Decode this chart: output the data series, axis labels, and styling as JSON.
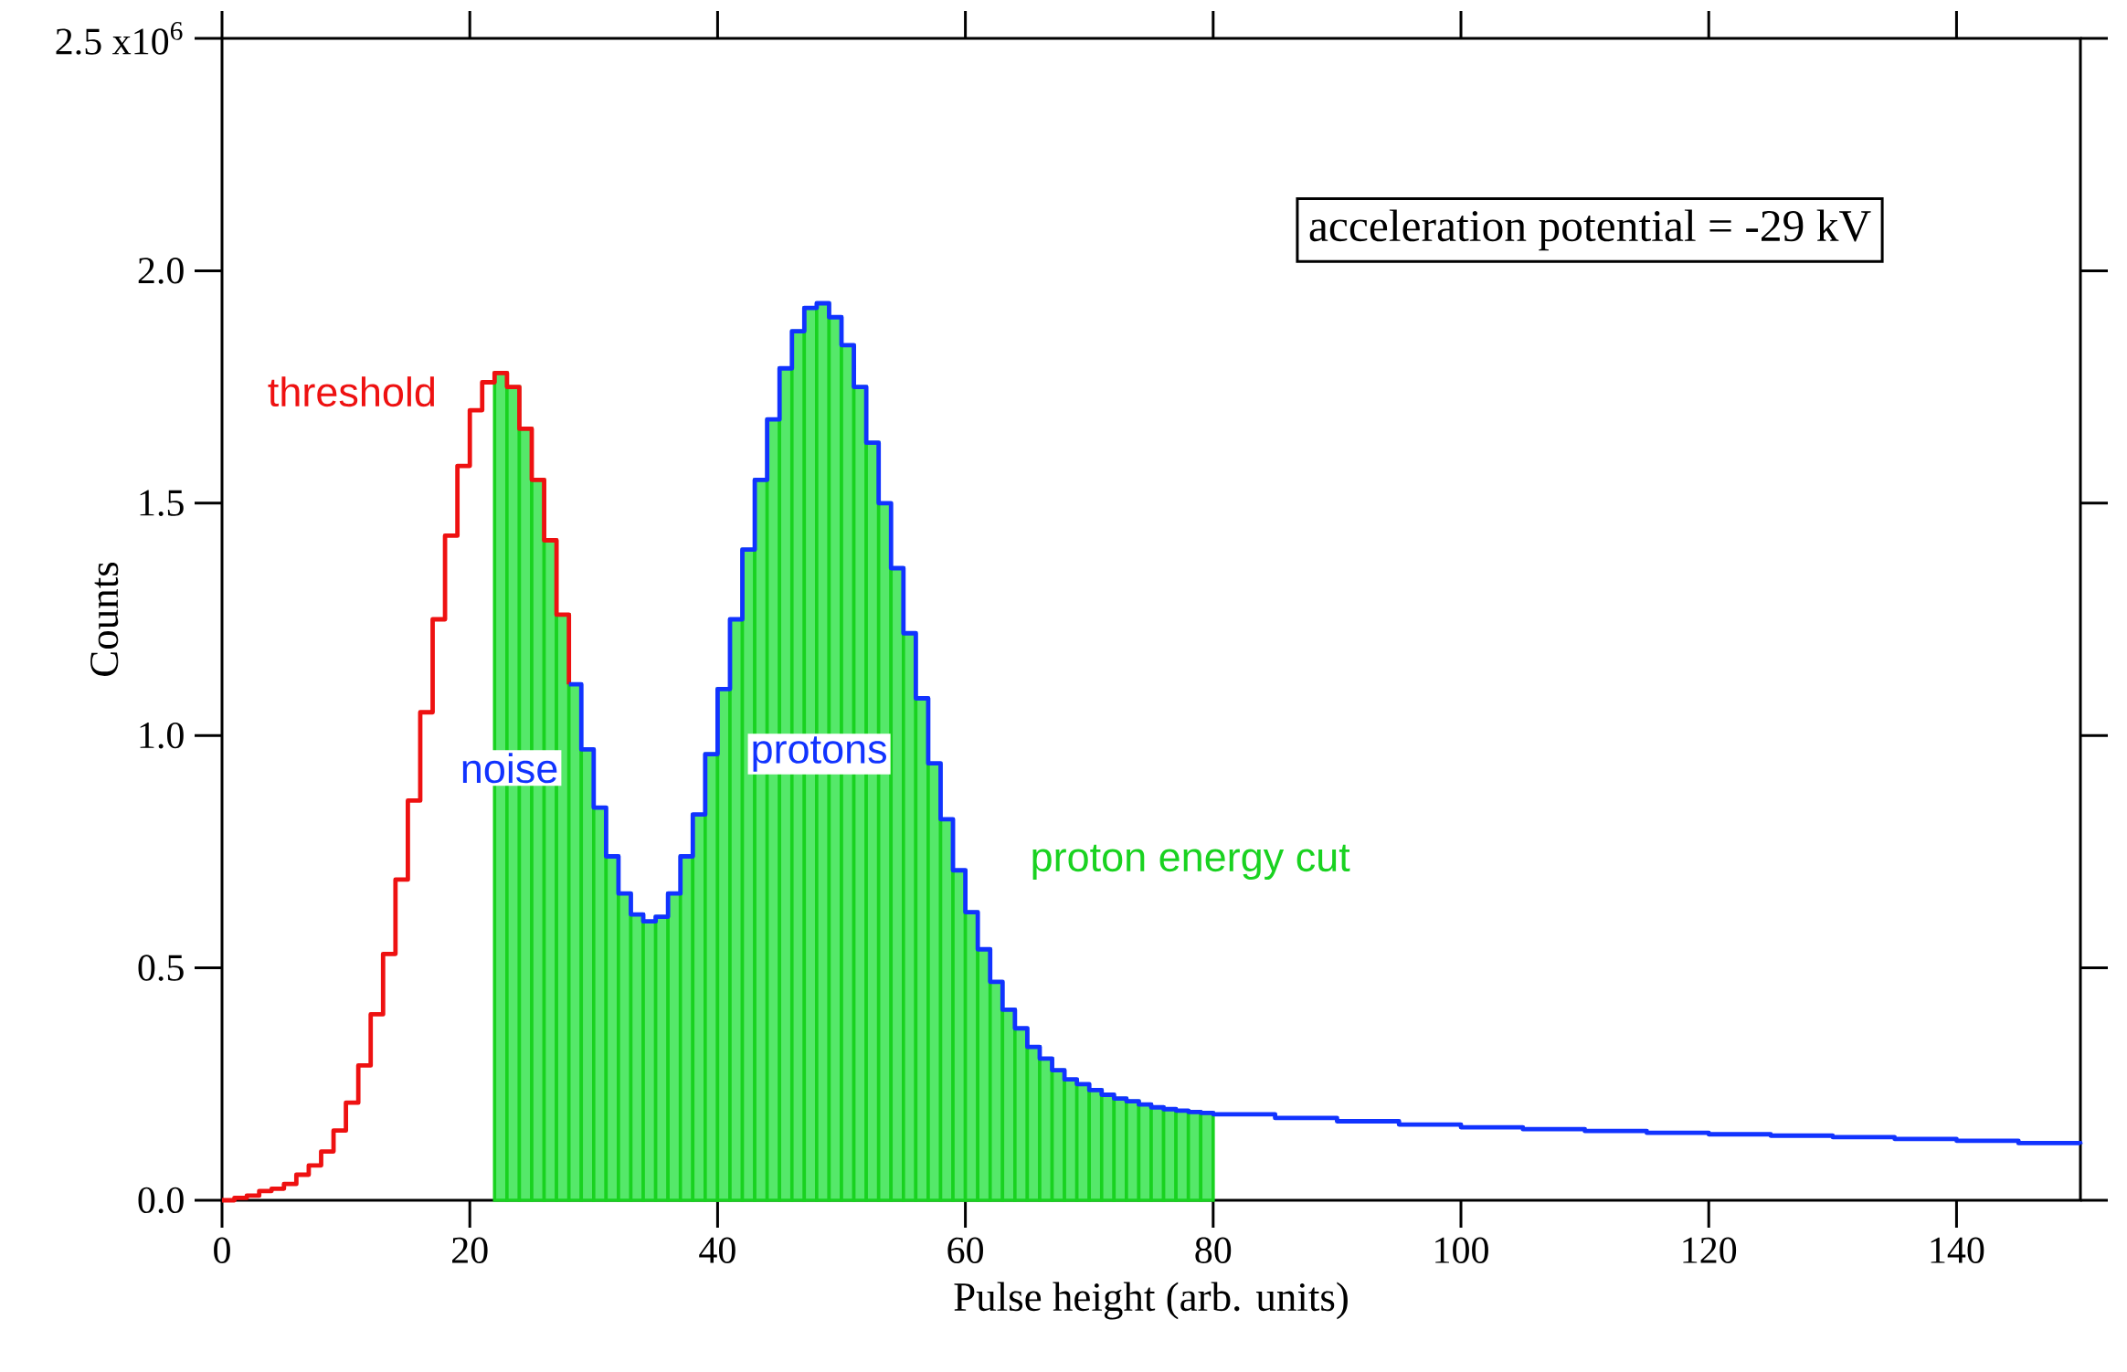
{
  "chart_data": {
    "type": "step",
    "xlabel": "Pulse height (arb. units)",
    "ylabel": "Counts",
    "xlim": [
      0,
      150
    ],
    "xticks": [
      0,
      20,
      40,
      60,
      80,
      100,
      120,
      140
    ],
    "ylim": [
      0,
      2.5
    ],
    "yticks": [
      {
        "value": 0,
        "label": "0.0"
      },
      {
        "value": 0.5,
        "label": "0.5"
      },
      {
        "value": 1.0,
        "label": "1.0"
      },
      {
        "value": 1.5,
        "label": "1.5"
      },
      {
        "value": 2.0,
        "label": "2.0"
      },
      {
        "value": 2.5,
        "label": null
      }
    ],
    "series": [
      {
        "type": "histogram",
        "color": "#55e86a",
        "bins": [
          22,
          23,
          24,
          25,
          26,
          27,
          28,
          29,
          30,
          31,
          32,
          33,
          34,
          35,
          36,
          37,
          38,
          39,
          40,
          41,
          42,
          43,
          44,
          45,
          46,
          47,
          48,
          49,
          50,
          51,
          52,
          53,
          54,
          55,
          56,
          57,
          58,
          59,
          60,
          61,
          62,
          63,
          64,
          65,
          66,
          67,
          68,
          69,
          70,
          71,
          72,
          73,
          74,
          75,
          76,
          77,
          78,
          79,
          80
        ],
        "values": [
          1.78,
          1.75,
          1.66,
          1.55,
          1.42,
          1.26,
          1.11,
          0.97,
          0.845,
          0.74,
          0.66,
          0.615,
          0.6,
          0.61,
          0.66,
          0.74,
          0.83,
          0.96,
          1.1,
          1.25,
          1.4,
          1.55,
          1.68,
          1.79,
          1.87,
          1.92,
          1.93,
          1.9,
          1.84,
          1.75,
          1.63,
          1.5,
          1.36,
          1.22,
          1.08,
          0.94,
          0.82,
          0.71,
          0.62,
          0.54,
          0.47,
          0.41,
          0.37,
          0.33,
          0.305,
          0.28,
          0.26,
          0.25,
          0.237,
          0.227,
          0.219,
          0.213,
          0.206,
          0.2,
          0.196,
          0.193,
          0.19,
          0.188
        ]
      },
      {
        "color": "#ee1111",
        "x": [
          0,
          1,
          2,
          3,
          4,
          5,
          6,
          7,
          8,
          9,
          10,
          11,
          12,
          13,
          14,
          15,
          16,
          17,
          18,
          19,
          20,
          21,
          22,
          23,
          24,
          25,
          26,
          27,
          28
        ],
        "values": [
          0.0,
          0.005,
          0.01,
          0.02,
          0.025,
          0.035,
          0.055,
          0.075,
          0.105,
          0.15,
          0.21,
          0.29,
          0.4,
          0.53,
          0.69,
          0.86,
          1.05,
          1.25,
          1.43,
          1.58,
          1.7,
          1.76,
          1.78,
          1.75,
          1.66,
          1.55,
          1.42,
          1.26,
          1.11
        ]
      },
      {
        "color": "#1133ff",
        "x": [
          28,
          29,
          30,
          31,
          32,
          33,
          34,
          35,
          36,
          37,
          38,
          39,
          40,
          41,
          42,
          43,
          44,
          45,
          46,
          47,
          48,
          49,
          50,
          51,
          52,
          53,
          54,
          55,
          56,
          57,
          58,
          59,
          60,
          61,
          62,
          63,
          64,
          65,
          66,
          67,
          68,
          69,
          70,
          71,
          72,
          73,
          74,
          75,
          76,
          77,
          78,
          79,
          80,
          85,
          90,
          95,
          100,
          105,
          110,
          115,
          120,
          125,
          130,
          135,
          140,
          145,
          150
        ],
        "values": [
          1.11,
          0.97,
          0.845,
          0.74,
          0.66,
          0.615,
          0.6,
          0.61,
          0.66,
          0.74,
          0.83,
          0.96,
          1.1,
          1.25,
          1.4,
          1.55,
          1.68,
          1.79,
          1.87,
          1.92,
          1.93,
          1.9,
          1.84,
          1.75,
          1.63,
          1.5,
          1.36,
          1.22,
          1.08,
          0.94,
          0.82,
          0.71,
          0.62,
          0.54,
          0.47,
          0.41,
          0.37,
          0.33,
          0.305,
          0.28,
          0.26,
          0.25,
          0.237,
          0.227,
          0.219,
          0.213,
          0.206,
          0.2,
          0.196,
          0.193,
          0.19,
          0.188,
          0.185,
          0.177,
          0.17,
          0.163,
          0.157,
          0.153,
          0.149,
          0.145,
          0.142,
          0.139,
          0.136,
          0.132,
          0.128,
          0.123,
          0.121
        ]
      }
    ],
    "annotations": [
      "threshold",
      {
        "text": "noise",
        "x": 23.2,
        "y": 0.93
      },
      {
        "text": "protons",
        "x": 48.2,
        "y": 0.96
      },
      "proton energy cut",
      "acceleration potential = -29 kV",
      "2.5 x10$^{6}$"
    ]
  }
}
